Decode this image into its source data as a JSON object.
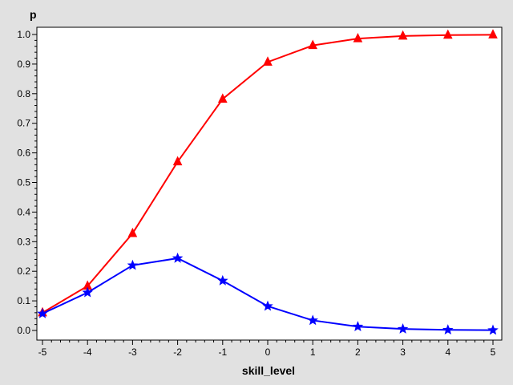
{
  "chart_data": {
    "type": "line",
    "xlabel": "skill_level",
    "ylabel": "p",
    "xlim": [
      -5,
      5
    ],
    "ylim": [
      0,
      1
    ],
    "x_ticks": [
      "-5",
      "-4",
      "-3",
      "-2",
      "-1",
      "0",
      "1",
      "2",
      "3",
      "4",
      "5"
    ],
    "y_ticks": [
      "0.0",
      "0.1",
      "0.2",
      "0.3",
      "0.4",
      "0.5",
      "0.6",
      "0.7",
      "0.8",
      "0.9",
      "1.0"
    ],
    "grid": false,
    "legend": "none",
    "x": [
      -5,
      -4,
      -3,
      -2,
      -1,
      0,
      1,
      2,
      3,
      4,
      5
    ],
    "series": [
      {
        "color": "#ff0000",
        "marker": "triangle",
        "values": [
          0.06,
          0.15,
          0.328,
          0.57,
          0.782,
          0.907,
          0.963,
          0.986,
          0.995,
          0.998,
          0.999
        ]
      },
      {
        "color": "#0000ff",
        "marker": "star",
        "values": [
          0.057,
          0.128,
          0.22,
          0.244,
          0.168,
          0.082,
          0.034,
          0.013,
          0.005,
          0.002,
          0.001
        ]
      }
    ]
  }
}
